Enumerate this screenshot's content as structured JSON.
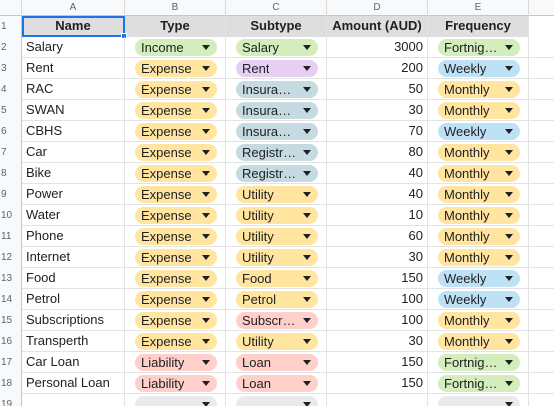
{
  "column_letters": [
    "A",
    "B",
    "C",
    "D",
    "E"
  ],
  "headers": [
    "Name",
    "Type",
    "Subtype",
    "Amount (AUD)",
    "Frequency"
  ],
  "colors": {
    "green": "#d4edbc",
    "yellow": "#ffe5a0",
    "purple": "#e6cff2",
    "teal": "#c6dbe1",
    "blue": "#bfe1f6",
    "red": "#ffcfc9",
    "gray": "#e8eaed"
  },
  "rows": [
    {
      "num": "2",
      "name": "Salary",
      "type": "Income",
      "type_color": "green",
      "subtype": "Salary",
      "subtype_color": "green",
      "amount": "3000",
      "frequency": "Fortnig…",
      "freq_color": "green"
    },
    {
      "num": "3",
      "name": "Rent",
      "type": "Expense",
      "type_color": "yellow",
      "subtype": "Rent",
      "subtype_color": "purple",
      "amount": "200",
      "frequency": "Weekly",
      "freq_color": "blue"
    },
    {
      "num": "4",
      "name": "RAC",
      "type": "Expense",
      "type_color": "yellow",
      "subtype": "Insura…",
      "subtype_color": "teal",
      "amount": "50",
      "frequency": "Monthly",
      "freq_color": "yellow"
    },
    {
      "num": "5",
      "name": "SWAN",
      "type": "Expense",
      "type_color": "yellow",
      "subtype": "Insura…",
      "subtype_color": "teal",
      "amount": "30",
      "frequency": "Monthly",
      "freq_color": "yellow"
    },
    {
      "num": "6",
      "name": "CBHS",
      "type": "Expense",
      "type_color": "yellow",
      "subtype": "Insura…",
      "subtype_color": "teal",
      "amount": "70",
      "frequency": "Weekly",
      "freq_color": "blue"
    },
    {
      "num": "7",
      "name": "Car",
      "type": "Expense",
      "type_color": "yellow",
      "subtype": "Registr…",
      "subtype_color": "teal",
      "amount": "80",
      "frequency": "Monthly",
      "freq_color": "yellow"
    },
    {
      "num": "8",
      "name": "Bike",
      "type": "Expense",
      "type_color": "yellow",
      "subtype": "Registr…",
      "subtype_color": "teal",
      "amount": "40",
      "frequency": "Monthly",
      "freq_color": "yellow"
    },
    {
      "num": "9",
      "name": "Power",
      "type": "Expense",
      "type_color": "yellow",
      "subtype": "Utility",
      "subtype_color": "yellow",
      "amount": "40",
      "frequency": "Monthly",
      "freq_color": "yellow"
    },
    {
      "num": "10",
      "name": "Water",
      "type": "Expense",
      "type_color": "yellow",
      "subtype": "Utility",
      "subtype_color": "yellow",
      "amount": "10",
      "frequency": "Monthly",
      "freq_color": "yellow"
    },
    {
      "num": "11",
      "name": "Phone",
      "type": "Expense",
      "type_color": "yellow",
      "subtype": "Utility",
      "subtype_color": "yellow",
      "amount": "60",
      "frequency": "Monthly",
      "freq_color": "yellow"
    },
    {
      "num": "12",
      "name": "Internet",
      "type": "Expense",
      "type_color": "yellow",
      "subtype": "Utility",
      "subtype_color": "yellow",
      "amount": "30",
      "frequency": "Monthly",
      "freq_color": "yellow"
    },
    {
      "num": "13",
      "name": "Food",
      "type": "Expense",
      "type_color": "yellow",
      "subtype": "Food",
      "subtype_color": "yellow",
      "amount": "150",
      "frequency": "Weekly",
      "freq_color": "blue"
    },
    {
      "num": "14",
      "name": "Petrol",
      "type": "Expense",
      "type_color": "yellow",
      "subtype": "Petrol",
      "subtype_color": "yellow",
      "amount": "100",
      "frequency": "Weekly",
      "freq_color": "blue"
    },
    {
      "num": "15",
      "name": "Subscriptions",
      "type": "Expense",
      "type_color": "yellow",
      "subtype": "Subscr…",
      "subtype_color": "red",
      "amount": "100",
      "frequency": "Monthly",
      "freq_color": "yellow"
    },
    {
      "num": "16",
      "name": "Transperth",
      "type": "Expense",
      "type_color": "yellow",
      "subtype": "Utility",
      "subtype_color": "yellow",
      "amount": "30",
      "frequency": "Monthly",
      "freq_color": "yellow"
    },
    {
      "num": "17",
      "name": "Car Loan",
      "type": "Liability",
      "type_color": "red",
      "subtype": "Loan",
      "subtype_color": "red",
      "amount": "150",
      "frequency": "Fortnig…",
      "freq_color": "green"
    },
    {
      "num": "18",
      "name": "Personal Loan",
      "type": "Liability",
      "type_color": "red",
      "subtype": "Loan",
      "subtype_color": "red",
      "amount": "150",
      "frequency": "Fortnig…",
      "freq_color": "green"
    },
    {
      "num": "19",
      "name": "",
      "type": "",
      "type_color": "gray",
      "subtype": "",
      "subtype_color": "gray",
      "amount": "",
      "frequency": "",
      "freq_color": "gray"
    }
  ]
}
